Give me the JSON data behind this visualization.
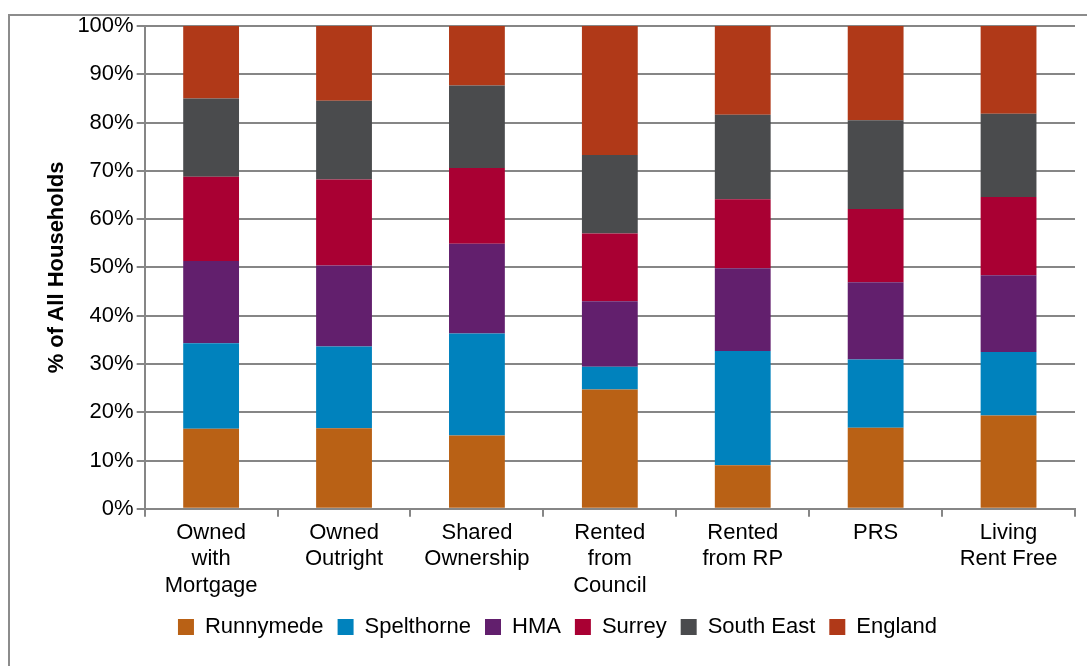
{
  "chart_data": {
    "type": "bar",
    "stacked": true,
    "ylabel": "% of All Households",
    "categories": [
      "Owned with Mortgage",
      "Owned Outright",
      "Shared Ownership",
      "Rented from Council",
      "Rented from RP",
      "PRS",
      "Living Rent Free"
    ],
    "series": [
      {
        "name": "Runnymede",
        "color": "#b96115",
        "values": [
          16.6,
          16.7,
          15.2,
          24.7,
          9.0,
          16.8,
          19.3
        ]
      },
      {
        "name": "Spelthorne",
        "color": "#0082bd",
        "values": [
          17.7,
          16.9,
          21.1,
          4.7,
          23.7,
          14.1,
          13.2
        ]
      },
      {
        "name": "HMA",
        "color": "#621f6d",
        "values": [
          17.0,
          16.8,
          18.6,
          13.6,
          17.1,
          16.0,
          15.9
        ]
      },
      {
        "name": "Surrey",
        "color": "#a90033",
        "values": [
          17.5,
          17.8,
          15.7,
          14.0,
          14.3,
          15.2,
          16.2
        ]
      },
      {
        "name": "South East",
        "color": "#4a4b4d",
        "values": [
          16.2,
          16.3,
          17.1,
          16.3,
          17.5,
          18.4,
          17.2
        ]
      },
      {
        "name": "England",
        "color": "#b03918",
        "values": [
          15.0,
          15.5,
          12.3,
          26.7,
          18.4,
          19.5,
          18.2
        ]
      }
    ],
    "ylim": [
      0,
      100
    ],
    "yticks": [
      {
        "value": 0,
        "label": "0%"
      },
      {
        "value": 10,
        "label": "10%"
      },
      {
        "value": 20,
        "label": "20%"
      },
      {
        "value": 30,
        "label": "30%"
      },
      {
        "value": 40,
        "label": "40%"
      },
      {
        "value": 50,
        "label": "50%"
      },
      {
        "value": 60,
        "label": "60%"
      },
      {
        "value": 70,
        "label": "70%"
      },
      {
        "value": 80,
        "label": "80%"
      },
      {
        "value": 90,
        "label": "90%"
      },
      {
        "value": 100,
        "label": "100%"
      }
    ],
    "grid": "y",
    "legend": "bottom"
  }
}
